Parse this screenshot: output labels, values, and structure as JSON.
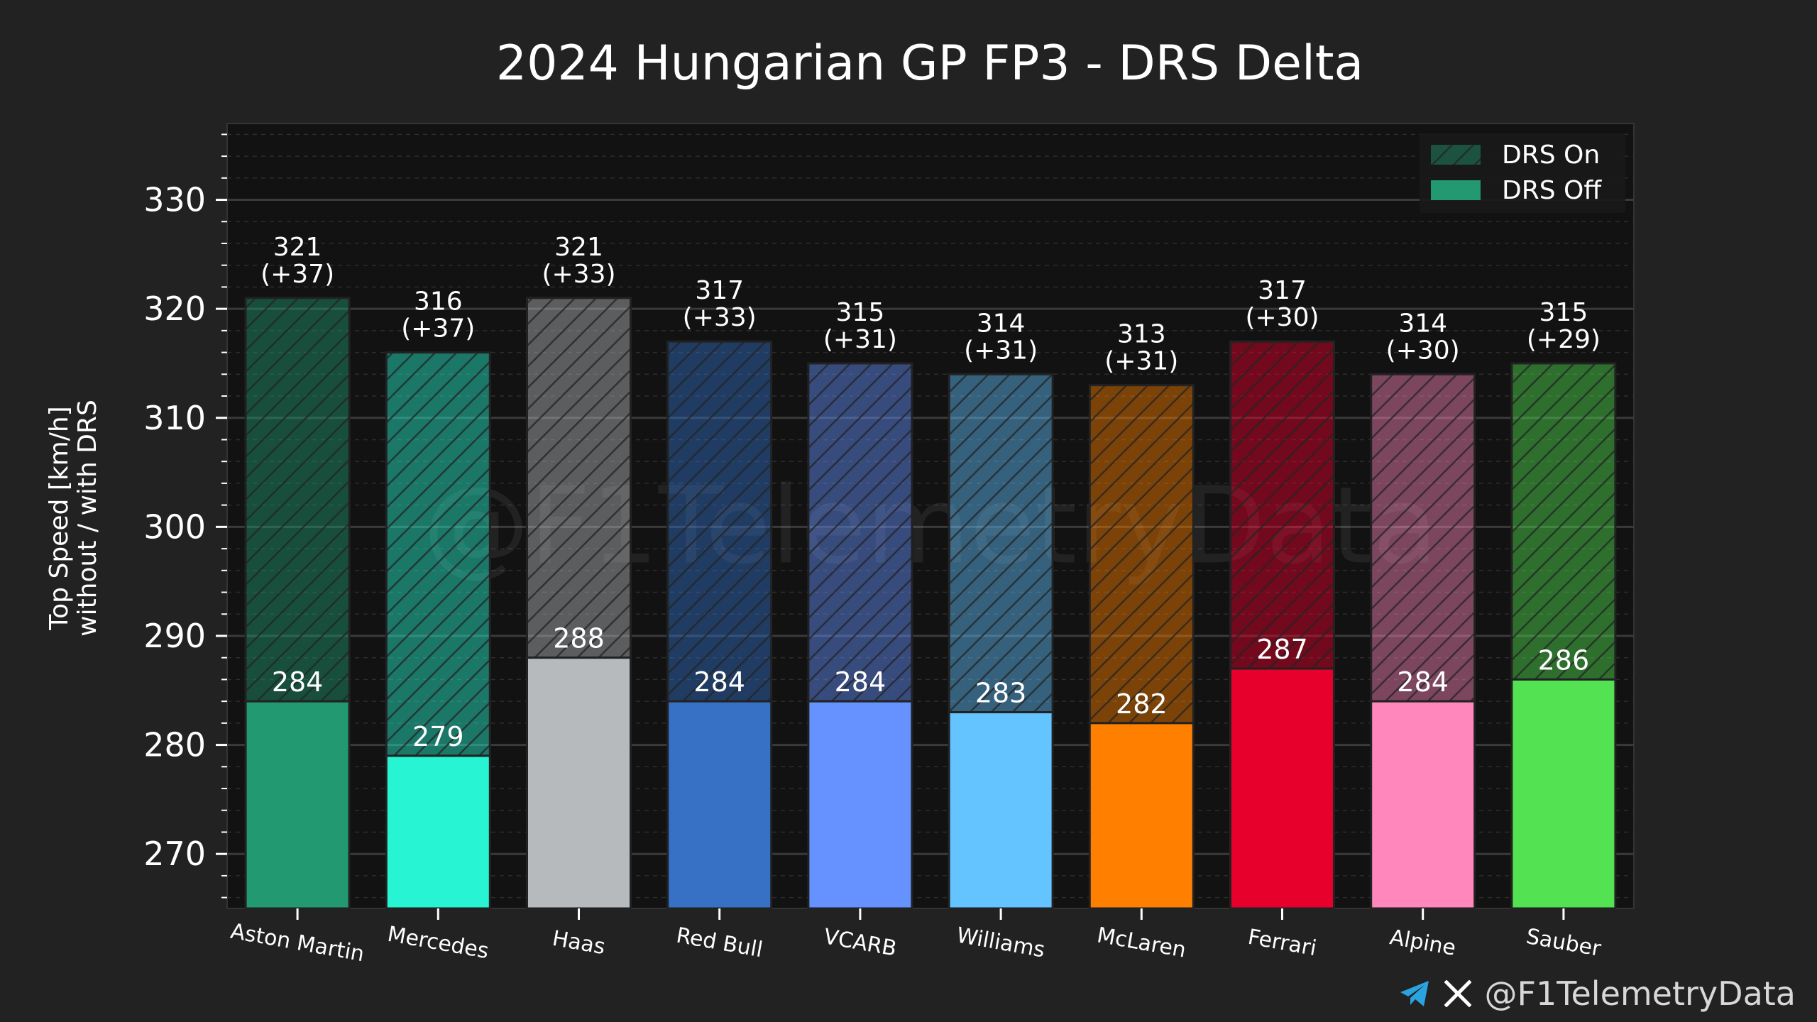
{
  "chart_data": {
    "type": "bar",
    "title": "2024 Hungarian GP FP3 - DRS Delta",
    "ylabel_line1": "Top Speed [km/h]",
    "ylabel_line2": "without / with DRS",
    "ylim": [
      265,
      337
    ],
    "yticks": [
      270,
      280,
      290,
      300,
      310,
      320,
      330
    ],
    "grid": true,
    "legend_position": "top-right",
    "watermark": "@F1TelemetryData",
    "categories": [
      "Aston Martin",
      "Mercedes",
      "Haas",
      "Red Bull",
      "VCARB",
      "Williams",
      "McLaren",
      "Ferrari",
      "Alpine",
      "Sauber"
    ],
    "colors": [
      "#229971",
      "#27F4D2",
      "#B6BABD",
      "#3671C6",
      "#6692FF",
      "#64C4FF",
      "#FF8000",
      "#E8002D",
      "#FF87BC",
      "#52E252"
    ],
    "series": [
      {
        "name": "DRS Off",
        "values": [
          284,
          279,
          288,
          284,
          284,
          283,
          282,
          287,
          284,
          286
        ],
        "labels": [
          "284",
          "279",
          "288",
          "284",
          "284",
          "283",
          "282",
          "287",
          "284",
          "286"
        ]
      },
      {
        "name": "DRS On",
        "values": [
          321,
          316,
          321,
          317,
          315,
          314,
          313,
          317,
          314,
          315
        ],
        "labels": [
          "321",
          "316",
          "321",
          "317",
          "315",
          "314",
          "313",
          "317",
          "314",
          "315"
        ],
        "delta_labels": [
          "(+37)",
          "(+37)",
          "(+33)",
          "(+33)",
          "(+31)",
          "(+31)",
          "(+31)",
          "(+30)",
          "(+30)",
          "(+29)"
        ]
      }
    ]
  },
  "footer": {
    "handle": "@F1TelemetryData",
    "icons": [
      "telegram-icon",
      "x-icon"
    ]
  }
}
